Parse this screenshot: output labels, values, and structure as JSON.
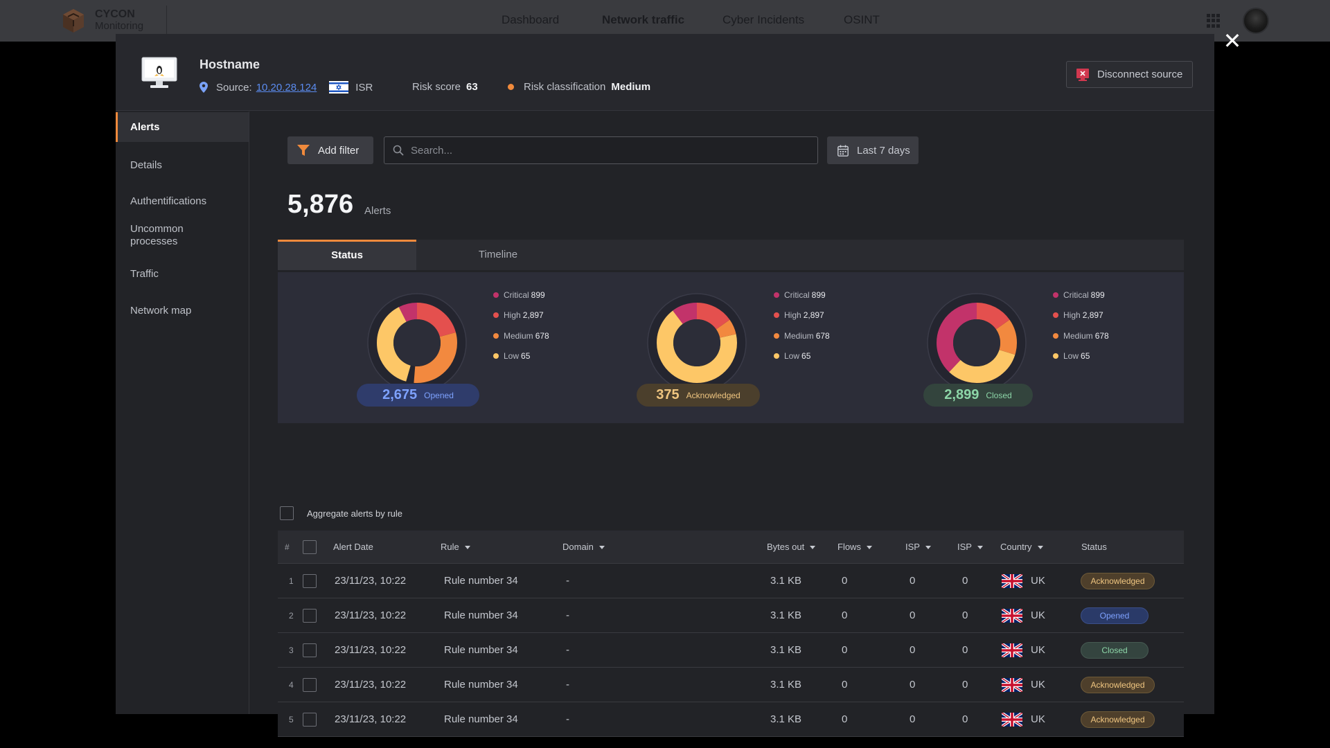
{
  "app": {
    "logo_line1": "CYCON",
    "logo_line2": "Monitoring"
  },
  "nav": [
    {
      "label": "Dashboard",
      "active": false
    },
    {
      "label": "Network traffic",
      "active": true
    },
    {
      "label": "Cyber Incidents",
      "active": false
    },
    {
      "label": "OSINT",
      "active": false
    }
  ],
  "modal": {
    "title": "Hostname",
    "source_label": "Source:",
    "source_ip": "10.20.28.124",
    "country_code": "ISR",
    "risk_score_label": "Risk score",
    "risk_score": "63",
    "risk_class_label": "Risk classification",
    "risk_class": "Medium",
    "disconnect_label": "Disconnect source",
    "close_icon": "close-icon"
  },
  "sidebar": {
    "items": [
      {
        "label": "Alerts",
        "active": true
      },
      {
        "label": "Details"
      },
      {
        "label": "Authentifications"
      },
      {
        "label": "Uncommon processes"
      },
      {
        "label": "Traffic"
      },
      {
        "label": "Network map"
      }
    ]
  },
  "toolbar": {
    "filter_label": "Add filter",
    "search_placeholder": "Search...",
    "date_label": "Last 7 days"
  },
  "summary": {
    "count": "5,876",
    "label": "Alerts"
  },
  "tabs": [
    {
      "label": "Status",
      "active": true
    },
    {
      "label": "Timeline",
      "active": false
    }
  ],
  "colors": {
    "critical": "#c2336a",
    "high": "#e4504e",
    "medium": "#f2893f",
    "low": "#fdc767",
    "accent": "#f08a3c"
  },
  "charts": [
    {
      "legend": [
        {
          "name": "Critical",
          "value": "899"
        },
        {
          "name": "High",
          "value": "2,897"
        },
        {
          "name": "Medium",
          "value": "678"
        },
        {
          "name": "Low",
          "value": "65"
        }
      ],
      "pill_value": "2,675",
      "pill_label": "Opened"
    },
    {
      "legend": [
        {
          "name": "Critical",
          "value": "899"
        },
        {
          "name": "High",
          "value": "2,897"
        },
        {
          "name": "Medium",
          "value": "678"
        },
        {
          "name": "Low",
          "value": "65"
        }
      ],
      "pill_value": "375",
      "pill_label": "Acknowledged"
    },
    {
      "legend": [
        {
          "name": "Critical",
          "value": "899"
        },
        {
          "name": "High",
          "value": "2,897"
        },
        {
          "name": "Medium",
          "value": "678"
        },
        {
          "name": "Low",
          "value": "65"
        }
      ],
      "pill_value": "2,899",
      "pill_label": "Closed"
    }
  ],
  "aggregate_label": "Aggregate alerts by rule",
  "table": {
    "headers": {
      "idx": "#",
      "date": "Alert Date",
      "rule": "Rule",
      "domain": "Domain",
      "bytes": "Bytes out",
      "flows": "Flows",
      "isp1": "ISP",
      "isp2": "ISP",
      "country": "Country",
      "status": "Status"
    },
    "rows": [
      {
        "idx": "1",
        "date": "23/11/23, 10:22",
        "rule": "Rule number 34",
        "domain": "-",
        "bytes": "3.1 KB",
        "flows": "0",
        "isp1": "0",
        "isp2": "0",
        "country": "UK",
        "status": "Acknowledged"
      },
      {
        "idx": "2",
        "date": "23/11/23, 10:22",
        "rule": "Rule number 34",
        "domain": "-",
        "bytes": "3.1 KB",
        "flows": "0",
        "isp1": "0",
        "isp2": "0",
        "country": "UK",
        "status": "Opened"
      },
      {
        "idx": "3",
        "date": "23/11/23, 10:22",
        "rule": "Rule number 34",
        "domain": "-",
        "bytes": "3.1 KB",
        "flows": "0",
        "isp1": "0",
        "isp2": "0",
        "country": "UK",
        "status": "Closed"
      },
      {
        "idx": "4",
        "date": "23/11/23, 10:22",
        "rule": "Rule number 34",
        "domain": "-",
        "bytes": "3.1 KB",
        "flows": "0",
        "isp1": "0",
        "isp2": "0",
        "country": "UK",
        "status": "Acknowledged"
      },
      {
        "idx": "5",
        "date": "23/11/23, 10:22",
        "rule": "Rule number 34",
        "domain": "-",
        "bytes": "3.1 KB",
        "flows": "0",
        "isp1": "0",
        "isp2": "0",
        "country": "UK",
        "status": "Acknowledged"
      }
    ]
  }
}
